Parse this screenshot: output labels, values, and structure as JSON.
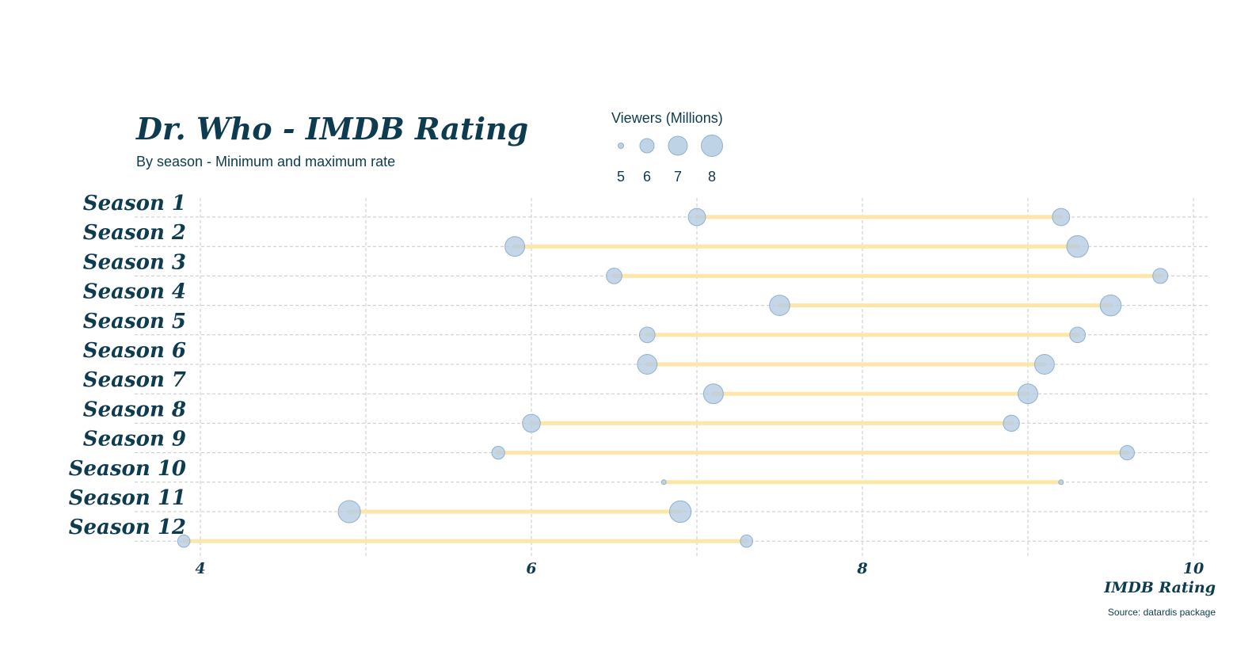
{
  "chart_data": {
    "type": "dumbbell",
    "title": "Dr. Who - IMDB Rating",
    "subtitle": "By season - Minimum and maximum rate",
    "xlabel": "IMDB Rating",
    "source": "Source: datardis package",
    "xlim": [
      3.6,
      10.1
    ],
    "xticks": [
      4,
      6,
      8,
      10
    ],
    "grid": true,
    "colors": {
      "segment": "#fce6a9",
      "point_fill": "#b3cbe2",
      "point_stroke": "#8fb0d0",
      "text": "#0d3b4f",
      "grid": "#c8c8c8"
    },
    "legend": {
      "title": "Viewers (Millions)",
      "values": [
        5,
        6,
        7,
        8
      ],
      "labels": [
        "5",
        "6",
        "7",
        "8"
      ],
      "placement": "top"
    },
    "categories": [
      "Season 1",
      "Season 2",
      "Season 3",
      "Season 4",
      "Season 5",
      "Season 6",
      "Season 7",
      "Season 8",
      "Season 9",
      "Season 10",
      "Season 11",
      "Season 12"
    ],
    "rows": [
      {
        "min": 7.0,
        "max": 9.2,
        "min_viewers": 7.2,
        "max_viewers": 7.2
      },
      {
        "min": 5.9,
        "max": 9.3,
        "min_viewers": 7.6,
        "max_viewers": 7.9
      },
      {
        "min": 6.5,
        "max": 9.8,
        "min_viewers": 6.9,
        "max_viewers": 6.8
      },
      {
        "min": 7.5,
        "max": 9.5,
        "min_viewers": 7.7,
        "max_viewers": 7.8
      },
      {
        "min": 6.7,
        "max": 9.3,
        "min_viewers": 6.9,
        "max_viewers": 6.9
      },
      {
        "min": 6.7,
        "max": 9.1,
        "min_viewers": 7.6,
        "max_viewers": 7.6
      },
      {
        "min": 7.1,
        "max": 9.0,
        "min_viewers": 7.6,
        "max_viewers": 7.6
      },
      {
        "min": 6.0,
        "max": 8.9,
        "min_viewers": 7.3,
        "max_viewers": 7.0
      },
      {
        "min": 5.8,
        "max": 9.6,
        "min_viewers": 6.4,
        "max_viewers": 6.7
      },
      {
        "min": 6.8,
        "max": 9.2,
        "min_viewers": 4.6,
        "max_viewers": 4.6
      },
      {
        "min": 4.9,
        "max": 6.9,
        "min_viewers": 8.0,
        "max_viewers": 7.9
      },
      {
        "min": 3.9,
        "max": 7.3,
        "min_viewers": 6.3,
        "max_viewers": 6.3
      }
    ]
  }
}
